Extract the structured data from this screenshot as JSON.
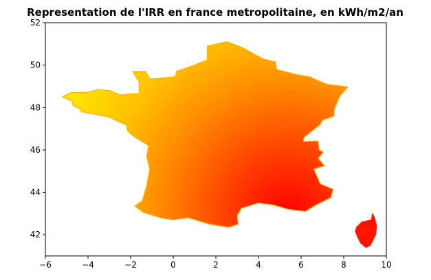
{
  "chart_data": {
    "type": "heatmap",
    "title": "Representation de l'IRR en france metropolitaine, en kWh/m2/an",
    "xlabel": "",
    "ylabel": "",
    "xlim": [
      -6,
      10
    ],
    "ylim": [
      41,
      52
    ],
    "x_ticks": [
      -6,
      -4,
      -2,
      0,
      2,
      4,
      6,
      8,
      10
    ],
    "x_tick_labels": [
      "−6",
      "−4",
      "−2",
      "0",
      "2",
      "4",
      "6",
      "8",
      "10"
    ],
    "y_ticks": [
      42,
      44,
      46,
      48,
      50,
      52
    ],
    "y_tick_labels": [
      "42",
      "44",
      "46",
      "48",
      "50",
      "52"
    ],
    "grid": false,
    "legend": "none",
    "colormap": [
      "#ff0000",
      "#ff4800",
      "#ff8a00",
      "#ffc000",
      "#ffe600"
    ],
    "regions": [
      {
        "name": "france-mainland",
        "outline": [
          [
            -5.2,
            48.5
          ],
          [
            -4.8,
            48.7
          ],
          [
            -4.0,
            48.72
          ],
          [
            -3.5,
            48.85
          ],
          [
            -3.0,
            48.8
          ],
          [
            -2.5,
            48.6
          ],
          [
            -1.95,
            48.65
          ],
          [
            -1.6,
            48.65
          ],
          [
            -1.6,
            49.2
          ],
          [
            -1.9,
            49.7
          ],
          [
            -1.3,
            49.7
          ],
          [
            -1.1,
            49.35
          ],
          [
            0.1,
            49.45
          ],
          [
            0.15,
            49.7
          ],
          [
            1.0,
            50.0
          ],
          [
            1.6,
            50.25
          ],
          [
            1.6,
            50.9
          ],
          [
            2.5,
            51.1
          ],
          [
            2.8,
            51.0
          ],
          [
            3.3,
            50.8
          ],
          [
            4.2,
            50.3
          ],
          [
            4.8,
            50.15
          ],
          [
            4.85,
            49.8
          ],
          [
            5.8,
            49.55
          ],
          [
            6.4,
            49.45
          ],
          [
            7.2,
            49.1
          ],
          [
            8.2,
            48.97
          ],
          [
            7.8,
            48.5
          ],
          [
            7.55,
            47.9
          ],
          [
            7.55,
            47.6
          ],
          [
            7.0,
            47.4
          ],
          [
            6.9,
            47.2
          ],
          [
            6.15,
            46.6
          ],
          [
            6.1,
            46.4
          ],
          [
            6.8,
            46.42
          ],
          [
            6.85,
            46.0
          ],
          [
            7.05,
            45.9
          ],
          [
            6.8,
            45.6
          ],
          [
            7.1,
            45.25
          ],
          [
            6.6,
            45.1
          ],
          [
            6.9,
            44.4
          ],
          [
            7.5,
            44.15
          ],
          [
            7.4,
            43.75
          ],
          [
            7.0,
            43.55
          ],
          [
            6.7,
            43.4
          ],
          [
            6.2,
            43.1
          ],
          [
            5.4,
            43.2
          ],
          [
            4.7,
            43.4
          ],
          [
            4.0,
            43.5
          ],
          [
            3.2,
            43.25
          ],
          [
            3.0,
            42.9
          ],
          [
            3.05,
            42.5
          ],
          [
            2.6,
            42.35
          ],
          [
            1.7,
            42.5
          ],
          [
            0.7,
            42.8
          ],
          [
            0.0,
            42.7
          ],
          [
            -0.6,
            42.8
          ],
          [
            -1.4,
            43.05
          ],
          [
            -1.8,
            43.35
          ],
          [
            -1.45,
            43.6
          ],
          [
            -1.25,
            44.3
          ],
          [
            -1.1,
            45.1
          ],
          [
            -1.25,
            45.7
          ],
          [
            -1.15,
            46.2
          ],
          [
            -1.8,
            46.6
          ],
          [
            -2.15,
            46.9
          ],
          [
            -2.2,
            47.2
          ],
          [
            -2.5,
            47.3
          ],
          [
            -3.0,
            47.55
          ],
          [
            -4.3,
            47.8
          ],
          [
            -4.4,
            47.95
          ],
          [
            -4.7,
            48.1
          ],
          [
            -4.75,
            48.3
          ],
          [
            -5.2,
            48.5
          ]
        ]
      },
      {
        "name": "corsica",
        "outline": [
          [
            9.35,
            43.0
          ],
          [
            9.45,
            42.8
          ],
          [
            9.55,
            42.4
          ],
          [
            9.5,
            42.0
          ],
          [
            9.25,
            41.5
          ],
          [
            9.05,
            41.4
          ],
          [
            8.8,
            41.6
          ],
          [
            8.65,
            41.9
          ],
          [
            8.55,
            42.15
          ],
          [
            8.6,
            42.35
          ],
          [
            8.85,
            42.6
          ],
          [
            9.3,
            42.7
          ],
          [
            9.35,
            43.0
          ]
        ]
      }
    ]
  }
}
